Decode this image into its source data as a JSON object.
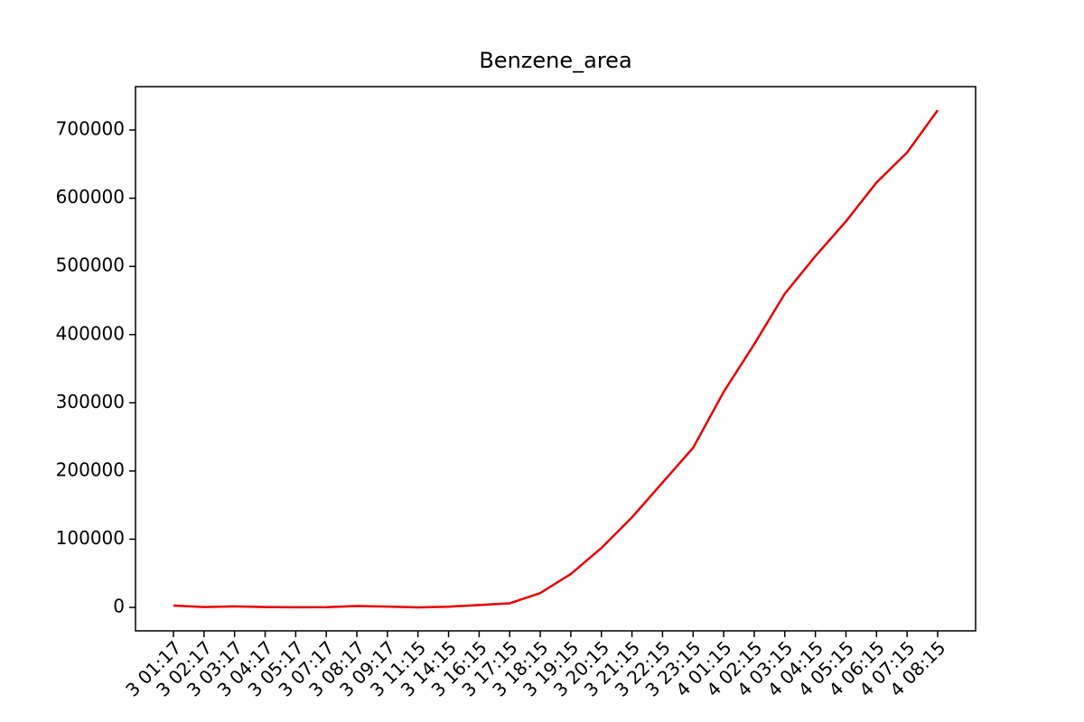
{
  "chart_data": {
    "type": "line",
    "title": "Benzene_area",
    "categories": [
      "3 01:17",
      "3 02:17",
      "3 03:17",
      "3 04:17",
      "3 05:17",
      "3 07:17",
      "3 08:17",
      "3 09:17",
      "3 11:15",
      "3 14:15",
      "3 16:15",
      "3 17:15",
      "3 18:15",
      "3 19:15",
      "3 20:15",
      "3 21:15",
      "3 22:15",
      "3 23:15",
      "4 01:15",
      "4 02:15",
      "4 03:15",
      "4 04:15",
      "4 05:15",
      "4 06:15",
      "4 07:15",
      "4 08:15"
    ],
    "series": [
      {
        "name": "Benzene_area",
        "color": "#e50000",
        "values": [
          2600,
          500,
          1500,
          500,
          200,
          300,
          2000,
          1200,
          0,
          1000,
          3500,
          6000,
          21000,
          49000,
          87000,
          132000,
          183000,
          234000,
          316000,
          386000,
          460000,
          515000,
          566000,
          623000,
          667000,
          729000
        ]
      }
    ],
    "ylim": [
      -34400,
      763600
    ],
    "yticks": [
      0,
      100000,
      200000,
      300000,
      400000,
      500000,
      600000,
      700000
    ]
  }
}
